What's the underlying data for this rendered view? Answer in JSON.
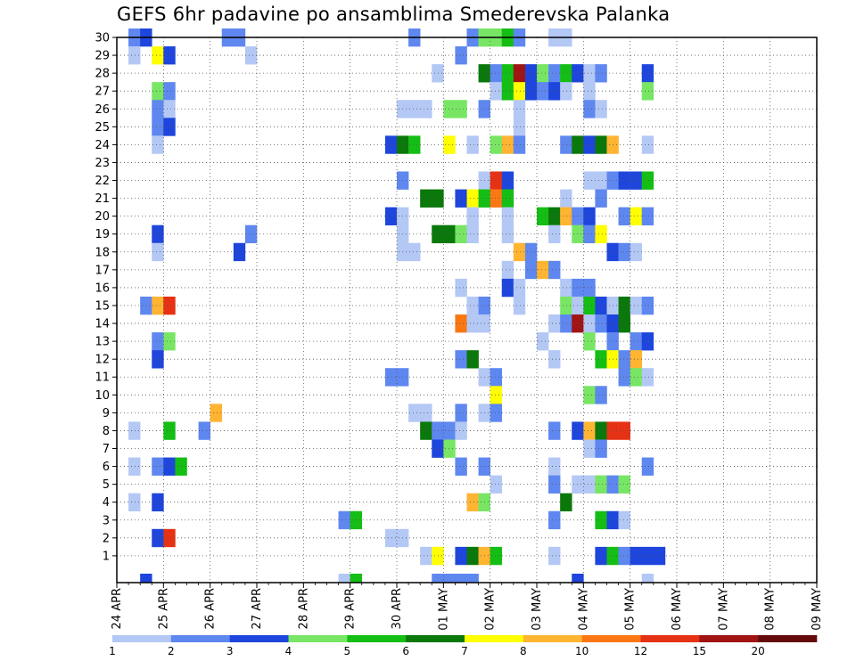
{
  "chart_data": {
    "type": "heatmap",
    "title": "GEFS 6hr padavine po ansamblima Smederevska Palanka",
    "xlabel": "",
    "ylabel": "",
    "x_tick_labels": [
      "24 APR",
      "25 APR",
      "26 APR",
      "27 APR",
      "28 APR",
      "29 APR",
      "30 APR",
      "01 MAY",
      "02 MAY",
      "03 MAY",
      "04 MAY",
      "05 MAY",
      "06 MAY",
      "07 MAY",
      "08 MAY",
      "09 MAY"
    ],
    "x_steps_per_day": 4,
    "y_tick_labels": [
      "1",
      "2",
      "3",
      "4",
      "5",
      "6",
      "7",
      "8",
      "9",
      "10",
      "11",
      "12",
      "13",
      "14",
      "15",
      "16",
      "17",
      "18",
      "19",
      "20",
      "21",
      "22",
      "23",
      "24",
      "25",
      "26",
      "27",
      "28",
      "29",
      "30"
    ],
    "grid": true,
    "legend": {
      "placement": "bottom",
      "thresholds": [
        "1",
        "2",
        "3",
        "4",
        "5",
        "6",
        "7",
        "8",
        "10",
        "12",
        "15",
        "20"
      ],
      "colors": [
        "#b4c8f5",
        "#5f87f0",
        "#1e46dc",
        "#78e664",
        "#14be14",
        "#0a780a",
        "#ffff00",
        "#ffb432",
        "#fa7814",
        "#e63214",
        "#a01414",
        "#640a0a"
      ]
    },
    "cells_format": "[member, step, color_level]",
    "cells": [
      [
        30,
        1,
        1
      ],
      [
        30,
        2,
        2
      ],
      [
        30,
        9,
        1
      ],
      [
        30,
        10,
        1
      ],
      [
        30,
        25,
        1
      ],
      [
        30,
        30,
        1
      ],
      [
        30,
        31,
        3
      ],
      [
        30,
        32,
        3
      ],
      [
        30,
        33,
        4
      ],
      [
        30,
        34,
        1
      ],
      [
        30,
        37,
        0
      ],
      [
        30,
        38,
        0
      ],
      [
        29,
        1,
        0
      ],
      [
        29,
        3,
        6
      ],
      [
        29,
        4,
        2
      ],
      [
        29,
        11,
        0
      ],
      [
        29,
        29,
        1
      ],
      [
        28,
        27,
        0
      ],
      [
        28,
        31,
        5
      ],
      [
        28,
        32,
        1
      ],
      [
        28,
        33,
        4
      ],
      [
        28,
        34,
        10
      ],
      [
        28,
        35,
        2
      ],
      [
        28,
        36,
        3
      ],
      [
        28,
        37,
        1
      ],
      [
        28,
        38,
        4
      ],
      [
        28,
        39,
        2
      ],
      [
        28,
        40,
        0
      ],
      [
        28,
        41,
        1
      ],
      [
        28,
        45,
        2
      ],
      [
        27,
        3,
        3
      ],
      [
        27,
        4,
        1
      ],
      [
        27,
        32,
        0
      ],
      [
        27,
        33,
        4
      ],
      [
        27,
        34,
        6
      ],
      [
        27,
        35,
        2
      ],
      [
        27,
        36,
        1
      ],
      [
        27,
        37,
        2
      ],
      [
        27,
        38,
        0
      ],
      [
        27,
        40,
        0
      ],
      [
        27,
        45,
        3
      ],
      [
        26,
        3,
        1
      ],
      [
        26,
        4,
        0
      ],
      [
        26,
        24,
        0
      ],
      [
        26,
        25,
        0
      ],
      [
        26,
        26,
        0
      ],
      [
        26,
        28,
        3
      ],
      [
        26,
        29,
        3
      ],
      [
        26,
        31,
        1
      ],
      [
        26,
        34,
        0
      ],
      [
        26,
        40,
        1
      ],
      [
        26,
        41,
        0
      ],
      [
        25,
        3,
        1
      ],
      [
        25,
        4,
        2
      ],
      [
        25,
        34,
        0
      ],
      [
        24,
        3,
        0
      ],
      [
        24,
        23,
        2
      ],
      [
        24,
        24,
        5
      ],
      [
        24,
        25,
        4
      ],
      [
        24,
        28,
        6
      ],
      [
        24,
        30,
        0
      ],
      [
        24,
        32,
        3
      ],
      [
        24,
        33,
        7
      ],
      [
        24,
        34,
        1
      ],
      [
        24,
        38,
        1
      ],
      [
        24,
        39,
        5
      ],
      [
        24,
        40,
        2
      ],
      [
        24,
        41,
        5
      ],
      [
        24,
        42,
        7
      ],
      [
        24,
        45,
        0
      ],
      [
        22,
        24,
        1
      ],
      [
        22,
        31,
        0
      ],
      [
        22,
        32,
        9
      ],
      [
        22,
        33,
        2
      ],
      [
        22,
        40,
        0
      ],
      [
        22,
        41,
        0
      ],
      [
        22,
        42,
        1
      ],
      [
        22,
        43,
        2
      ],
      [
        22,
        44,
        2
      ],
      [
        22,
        45,
        4
      ],
      [
        21,
        26,
        5
      ],
      [
        21,
        27,
        5
      ],
      [
        21,
        29,
        2
      ],
      [
        21,
        30,
        6
      ],
      [
        21,
        31,
        4
      ],
      [
        21,
        32,
        8
      ],
      [
        21,
        33,
        4
      ],
      [
        21,
        38,
        0
      ],
      [
        21,
        41,
        1
      ],
      [
        20,
        23,
        2
      ],
      [
        20,
        24,
        0
      ],
      [
        20,
        30,
        0
      ],
      [
        20,
        33,
        0
      ],
      [
        20,
        36,
        4
      ],
      [
        20,
        37,
        5
      ],
      [
        20,
        38,
        7
      ],
      [
        20,
        39,
        1
      ],
      [
        20,
        40,
        2
      ],
      [
        20,
        43,
        1
      ],
      [
        20,
        44,
        6
      ],
      [
        20,
        45,
        1
      ],
      [
        19,
        3,
        2
      ],
      [
        19,
        11,
        1
      ],
      [
        19,
        24,
        0
      ],
      [
        19,
        27,
        5
      ],
      [
        19,
        28,
        5
      ],
      [
        19,
        29,
        3
      ],
      [
        19,
        30,
        0
      ],
      [
        19,
        33,
        0
      ],
      [
        19,
        37,
        0
      ],
      [
        19,
        39,
        3
      ],
      [
        19,
        40,
        1
      ],
      [
        19,
        41,
        6
      ],
      [
        18,
        3,
        0
      ],
      [
        18,
        10,
        2
      ],
      [
        18,
        24,
        0
      ],
      [
        18,
        25,
        0
      ],
      [
        18,
        34,
        7
      ],
      [
        18,
        35,
        1
      ],
      [
        18,
        42,
        2
      ],
      [
        18,
        43,
        1
      ],
      [
        18,
        44,
        0
      ],
      [
        17,
        33,
        0
      ],
      [
        17,
        35,
        1
      ],
      [
        17,
        36,
        7
      ],
      [
        17,
        37,
        1
      ],
      [
        16,
        29,
        0
      ],
      [
        16,
        33,
        2
      ],
      [
        16,
        34,
        0
      ],
      [
        16,
        38,
        0
      ],
      [
        16,
        39,
        1
      ],
      [
        16,
        40,
        1
      ],
      [
        15,
        2,
        1
      ],
      [
        15,
        3,
        7
      ],
      [
        15,
        4,
        9
      ],
      [
        15,
        30,
        0
      ],
      [
        15,
        31,
        1
      ],
      [
        15,
        34,
        0
      ],
      [
        15,
        38,
        3
      ],
      [
        15,
        39,
        0
      ],
      [
        15,
        40,
        4
      ],
      [
        15,
        41,
        2
      ],
      [
        15,
        42,
        0
      ],
      [
        15,
        43,
        5
      ],
      [
        15,
        44,
        0
      ],
      [
        15,
        45,
        1
      ],
      [
        14,
        29,
        8
      ],
      [
        14,
        30,
        0
      ],
      [
        14,
        31,
        0
      ],
      [
        14,
        37,
        0
      ],
      [
        14,
        38,
        1
      ],
      [
        14,
        39,
        10
      ],
      [
        14,
        40,
        0
      ],
      [
        14,
        41,
        1
      ],
      [
        14,
        42,
        2
      ],
      [
        14,
        43,
        5
      ],
      [
        13,
        3,
        1
      ],
      [
        13,
        4,
        3
      ],
      [
        13,
        36,
        0
      ],
      [
        13,
        40,
        3
      ],
      [
        13,
        42,
        1
      ],
      [
        13,
        44,
        1
      ],
      [
        13,
        45,
        2
      ],
      [
        12,
        3,
        2
      ],
      [
        12,
        29,
        1
      ],
      [
        12,
        30,
        5
      ],
      [
        12,
        37,
        0
      ],
      [
        12,
        41,
        4
      ],
      [
        12,
        42,
        6
      ],
      [
        12,
        43,
        1
      ],
      [
        12,
        44,
        7
      ],
      [
        11,
        23,
        1
      ],
      [
        11,
        24,
        1
      ],
      [
        11,
        31,
        0
      ],
      [
        11,
        32,
        1
      ],
      [
        11,
        43,
        1
      ],
      [
        11,
        44,
        3
      ],
      [
        11,
        45,
        0
      ],
      [
        10,
        32,
        6
      ],
      [
        10,
        40,
        3
      ],
      [
        10,
        41,
        1
      ],
      [
        9,
        8,
        7
      ],
      [
        9,
        25,
        0
      ],
      [
        9,
        26,
        0
      ],
      [
        9,
        29,
        1
      ],
      [
        9,
        31,
        0
      ],
      [
        9,
        32,
        1
      ],
      [
        8,
        1,
        0
      ],
      [
        8,
        4,
        4
      ],
      [
        8,
        7,
        1
      ],
      [
        8,
        26,
        5
      ],
      [
        8,
        27,
        1
      ],
      [
        8,
        28,
        1
      ],
      [
        8,
        29,
        0
      ],
      [
        8,
        37,
        1
      ],
      [
        8,
        39,
        2
      ],
      [
        8,
        40,
        7
      ],
      [
        8,
        41,
        5
      ],
      [
        8,
        42,
        9
      ],
      [
        8,
        43,
        9
      ],
      [
        7,
        27,
        2
      ],
      [
        7,
        28,
        3
      ],
      [
        7,
        40,
        0
      ],
      [
        7,
        41,
        1
      ],
      [
        6,
        1,
        0
      ],
      [
        6,
        3,
        1
      ],
      [
        6,
        4,
        2
      ],
      [
        6,
        5,
        4
      ],
      [
        6,
        29,
        1
      ],
      [
        6,
        31,
        1
      ],
      [
        6,
        37,
        0
      ],
      [
        6,
        45,
        1
      ],
      [
        5,
        32,
        0
      ],
      [
        5,
        37,
        1
      ],
      [
        5,
        39,
        0
      ],
      [
        5,
        40,
        0
      ],
      [
        5,
        41,
        3
      ],
      [
        5,
        42,
        1
      ],
      [
        5,
        43,
        3
      ],
      [
        4,
        1,
        0
      ],
      [
        4,
        3,
        2
      ],
      [
        4,
        30,
        7
      ],
      [
        4,
        31,
        3
      ],
      [
        4,
        38,
        5
      ],
      [
        3,
        19,
        1
      ],
      [
        3,
        20,
        4
      ],
      [
        3,
        37,
        1
      ],
      [
        3,
        41,
        4
      ],
      [
        3,
        42,
        2
      ],
      [
        3,
        43,
        0
      ],
      [
        2,
        3,
        2
      ],
      [
        2,
        4,
        9
      ],
      [
        2,
        23,
        0
      ],
      [
        2,
        24,
        0
      ],
      [
        1,
        26,
        0
      ],
      [
        1,
        27,
        6
      ],
      [
        1,
        29,
        2
      ],
      [
        1,
        30,
        5
      ],
      [
        1,
        31,
        7
      ],
      [
        1,
        32,
        4
      ],
      [
        1,
        37,
        0
      ],
      [
        1,
        41,
        2
      ],
      [
        1,
        42,
        4
      ],
      [
        1,
        43,
        1
      ],
      [
        1,
        44,
        2
      ],
      [
        1,
        45,
        2
      ],
      [
        1,
        46,
        2
      ]
    ],
    "bottom_row_cells": [
      [
        2,
        2
      ],
      [
        19,
        0
      ],
      [
        20,
        4
      ],
      [
        27,
        1
      ],
      [
        28,
        1
      ],
      [
        29,
        1
      ],
      [
        30,
        1
      ],
      [
        39,
        2
      ],
      [
        45,
        0
      ]
    ]
  }
}
